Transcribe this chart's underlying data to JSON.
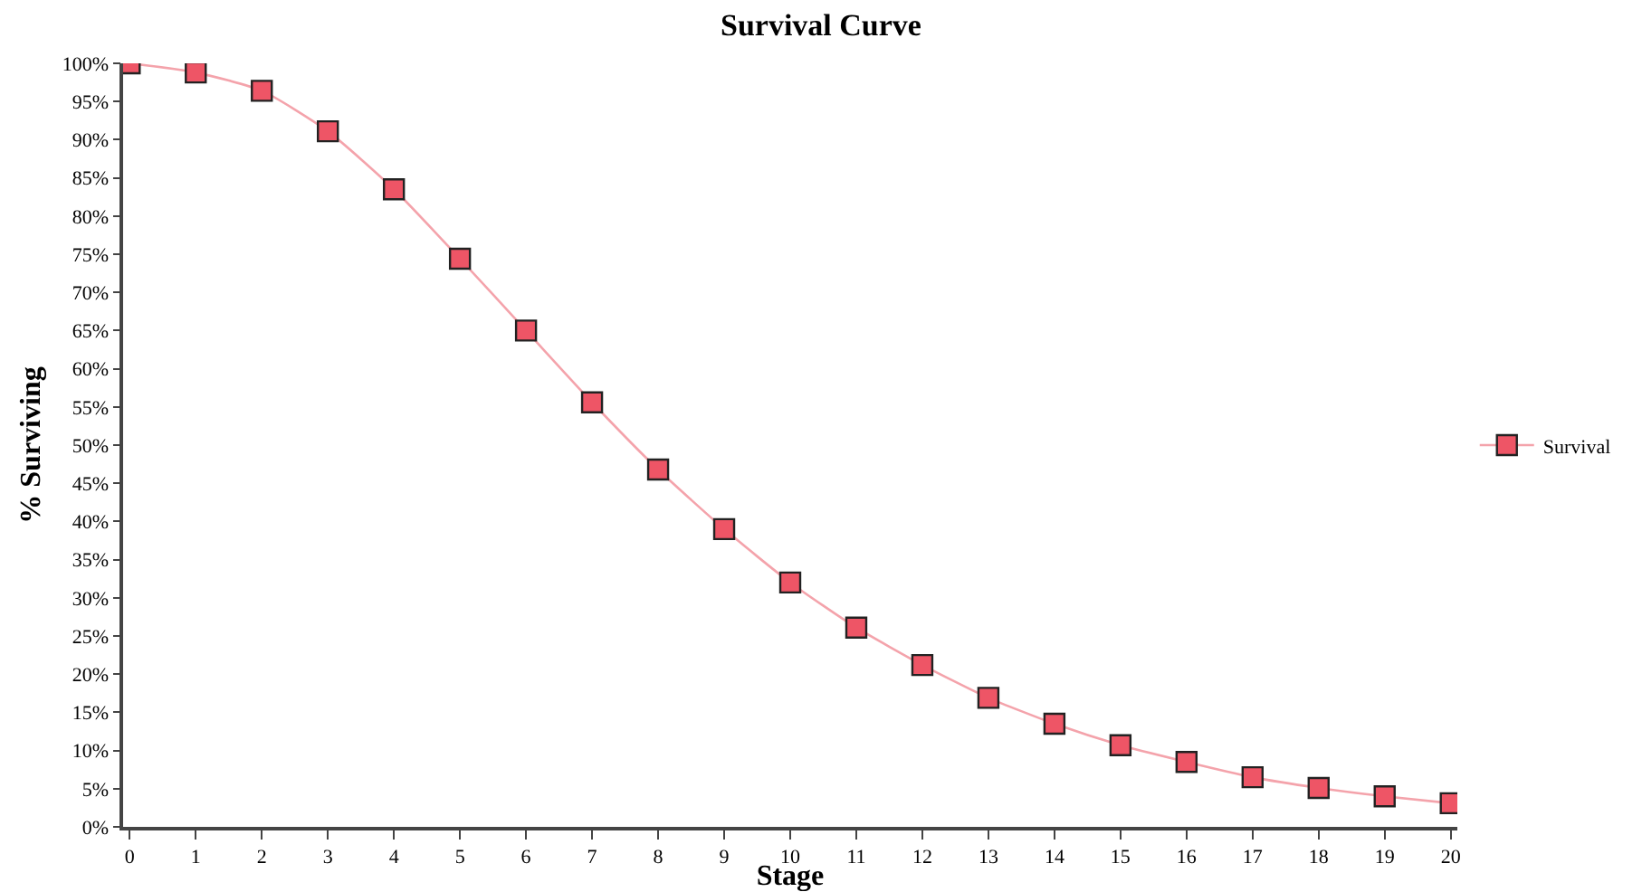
{
  "chart_data": {
    "type": "line",
    "title": "Survival Curve",
    "xlabel": "Stage",
    "ylabel": "% Surviving",
    "x": [
      0,
      1,
      2,
      3,
      4,
      5,
      6,
      7,
      8,
      9,
      10,
      11,
      12,
      13,
      14,
      15,
      16,
      17,
      18,
      19,
      20
    ],
    "series": [
      {
        "name": "Survival",
        "color": "#ee5566",
        "values": [
          100,
          98.8,
          96.4,
          91.1,
          83.5,
          74.4,
          65.0,
          55.6,
          46.8,
          39.0,
          32.0,
          26.1,
          21.2,
          16.9,
          13.5,
          10.7,
          8.5,
          6.5,
          5.1,
          4.0,
          3.1
        ]
      }
    ],
    "xlim": [
      -0.1,
      20.1
    ],
    "xticks": [
      0,
      1,
      2,
      3,
      4,
      5,
      6,
      7,
      8,
      9,
      10,
      11,
      12,
      13,
      14,
      15,
      16,
      17,
      18,
      19,
      20
    ],
    "ylim": [
      0,
      100
    ],
    "yticks": [
      {
        "value": 0,
        "label": "0%"
      },
      {
        "value": 5,
        "label": "5%"
      },
      {
        "value": 10,
        "label": "10%"
      },
      {
        "value": 15,
        "label": "15%"
      },
      {
        "value": 20,
        "label": "20%"
      },
      {
        "value": 25,
        "label": "25%"
      },
      {
        "value": 30,
        "label": "30%"
      },
      {
        "value": 35,
        "label": "35%"
      },
      {
        "value": 40,
        "label": "40%"
      },
      {
        "value": 45,
        "label": "45%"
      },
      {
        "value": 50,
        "label": "50%"
      },
      {
        "value": 55,
        "label": "55%"
      },
      {
        "value": 60,
        "label": "60%"
      },
      {
        "value": 65,
        "label": "65%"
      },
      {
        "value": 70,
        "label": "70%"
      },
      {
        "value": 75,
        "label": "75%"
      },
      {
        "value": 80,
        "label": "80%"
      },
      {
        "value": 85,
        "label": "85%"
      },
      {
        "value": 90,
        "label": "90%"
      },
      {
        "value": 95,
        "label": "95%"
      },
      {
        "value": 100,
        "label": "100%"
      }
    ],
    "grid": false,
    "legend": "right",
    "marker": "square",
    "line_style": "solid"
  }
}
